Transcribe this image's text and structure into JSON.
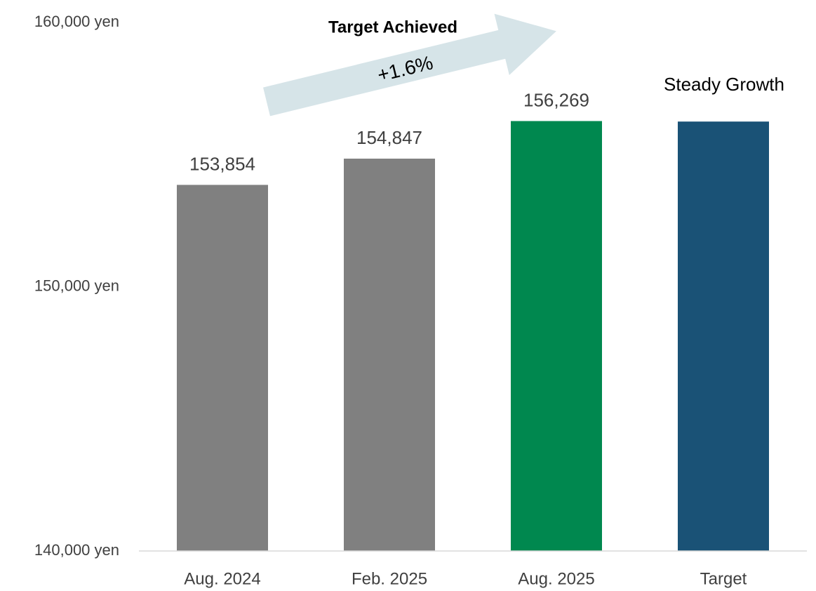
{
  "chart_data": {
    "type": "bar",
    "categories": [
      "Aug. 2024",
      "Feb. 2025",
      "Aug. 2025",
      "Target"
    ],
    "values": [
      153854,
      154847,
      156269,
      156250
    ],
    "value_labels": [
      "153,854",
      "154,847",
      "156,269",
      null
    ],
    "colors": [
      "#808080",
      "#808080",
      "#00884f",
      "#1a5276"
    ],
    "ylim": [
      140000,
      160000
    ],
    "yticks": [
      {
        "value": 140000,
        "label": "140,000 yen"
      },
      {
        "value": 150000,
        "label": "150,000 yen"
      },
      {
        "value": 160000,
        "label": "160,000 yen"
      }
    ],
    "grid": false,
    "annotations": [
      "Target Achieved",
      "+1.6%",
      "Steady Growth"
    ]
  }
}
